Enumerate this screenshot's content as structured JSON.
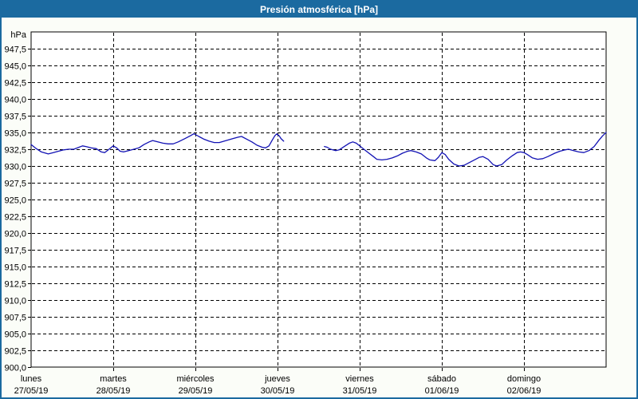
{
  "window": {
    "title": "Presión atmosférica [hPa]",
    "colors": {
      "titlebar": "#1b6aa0",
      "border": "#1b6aa0",
      "background": "#fbfdf8",
      "plot_background": "#ffffff",
      "grid": "#000000",
      "text": "#000000",
      "title_text": "#ffffff"
    }
  },
  "chart_data": {
    "type": "line",
    "title": "Presión atmosférica [hPa]",
    "grid": "dashed",
    "legend": "none",
    "y_axis": {
      "unit_label": "hPa",
      "min": 900,
      "max": 950,
      "tick_step": 2.5,
      "ticks": [
        {
          "label": "947,5",
          "value": 947.5
        },
        {
          "label": "945,0",
          "value": 945.0
        },
        {
          "label": "942,5",
          "value": 942.5
        },
        {
          "label": "940,0",
          "value": 940.0
        },
        {
          "label": "937,5",
          "value": 937.5
        },
        {
          "label": "935,0",
          "value": 935.0
        },
        {
          "label": "932,5",
          "value": 932.5
        },
        {
          "label": "930,0",
          "value": 930.0
        },
        {
          "label": "927,5",
          "value": 927.5
        },
        {
          "label": "925,0",
          "value": 925.0
        },
        {
          "label": "922,5",
          "value": 922.5
        },
        {
          "label": "920,0",
          "value": 920.0
        },
        {
          "label": "917,5",
          "value": 917.5
        },
        {
          "label": "915,0",
          "value": 915.0
        },
        {
          "label": "912,5",
          "value": 912.5
        },
        {
          "label": "910,0",
          "value": 910.0
        },
        {
          "label": "907,5",
          "value": 907.5
        },
        {
          "label": "905,0",
          "value": 905.0
        },
        {
          "label": "902,5",
          "value": 902.5
        },
        {
          "label": "900,0",
          "value": 900.0
        }
      ]
    },
    "x_axis": {
      "days": [
        {
          "name": "lunes",
          "date": "27/05/19"
        },
        {
          "name": "martes",
          "date": "28/05/19"
        },
        {
          "name": "miércoles",
          "date": "29/05/19"
        },
        {
          "name": "jueves",
          "date": "30/05/19"
        },
        {
          "name": "viernes",
          "date": "31/05/19"
        },
        {
          "name": "sábado",
          "date": "01/06/19"
        },
        {
          "name": "domingo",
          "date": "02/06/19"
        }
      ]
    },
    "series": [
      {
        "name": "Presión atmosférica",
        "color": "#1212b4",
        "x_unit": "hours_since_monday_00",
        "points": [
          [
            0,
            933.2
          ],
          [
            1.5,
            932.6
          ],
          [
            3,
            932.1
          ],
          [
            5,
            931.8
          ],
          [
            6.5,
            932.0
          ],
          [
            8,
            932.2
          ],
          [
            9.5,
            932.4
          ],
          [
            11,
            932.5
          ],
          [
            12.5,
            932.5
          ],
          [
            14,
            932.8
          ],
          [
            15,
            933.0
          ],
          [
            16,
            932.9
          ],
          [
            17.5,
            932.7
          ],
          [
            19,
            932.6
          ],
          [
            20.5,
            932.1
          ],
          [
            21.5,
            932.0
          ],
          [
            23,
            932.6
          ],
          [
            24,
            933.0
          ],
          [
            25,
            932.7
          ],
          [
            26,
            932.2
          ],
          [
            27,
            932.1
          ],
          [
            28.5,
            932.3
          ],
          [
            30,
            932.5
          ],
          [
            31.5,
            932.7
          ],
          [
            33,
            933.2
          ],
          [
            34.5,
            933.6
          ],
          [
            35.5,
            933.8
          ],
          [
            37,
            933.6
          ],
          [
            38.5,
            933.4
          ],
          [
            40,
            933.3
          ],
          [
            41.5,
            933.3
          ],
          [
            43,
            933.6
          ],
          [
            45,
            934.1
          ],
          [
            46.5,
            934.5
          ],
          [
            47.5,
            934.8
          ],
          [
            48,
            934.7
          ],
          [
            49,
            934.4
          ],
          [
            50.5,
            934.0
          ],
          [
            52,
            933.7
          ],
          [
            53.5,
            933.5
          ],
          [
            55,
            933.5
          ],
          [
            57,
            933.8
          ],
          [
            59,
            934.1
          ],
          [
            60.5,
            934.3
          ],
          [
            61.5,
            934.4
          ],
          [
            63,
            934.0
          ],
          [
            64.5,
            933.6
          ],
          [
            66,
            933.1
          ],
          [
            67.5,
            932.8
          ],
          [
            68.5,
            932.7
          ],
          [
            69.5,
            933.0
          ],
          [
            70.5,
            933.9
          ],
          [
            71.2,
            934.5
          ],
          [
            71.8,
            934.8
          ],
          [
            72,
            934.7
          ],
          [
            72.5,
            934.5
          ],
          [
            73,
            934.1
          ],
          [
            73.8,
            933.7
          ],
          null,
          [
            85.7,
            932.9
          ],
          [
            86.5,
            932.8
          ],
          [
            87.5,
            932.5
          ],
          [
            89,
            932.3
          ],
          [
            90,
            932.4
          ],
          [
            91.5,
            932.9
          ],
          [
            93,
            933.4
          ],
          [
            94,
            933.6
          ],
          [
            95,
            933.4
          ],
          [
            96,
            933.0
          ],
          [
            97,
            932.6
          ],
          [
            98.5,
            932.0
          ],
          [
            100,
            931.4
          ],
          [
            101,
            931.0
          ],
          [
            102.5,
            930.9
          ],
          [
            104,
            931.0
          ],
          [
            105.5,
            931.2
          ],
          [
            107,
            931.5
          ],
          [
            108.5,
            931.9
          ],
          [
            110,
            932.2
          ],
          [
            111,
            932.3
          ],
          [
            112.5,
            932.1
          ],
          [
            114,
            931.8
          ],
          [
            115.5,
            931.2
          ],
          [
            116.5,
            930.9
          ],
          [
            118,
            930.8
          ],
          [
            119,
            931.3
          ],
          [
            120,
            932.0
          ],
          [
            121,
            931.7
          ],
          [
            122,
            931.0
          ],
          [
            123.5,
            930.3
          ],
          [
            125,
            930.0
          ],
          [
            126.5,
            930.1
          ],
          [
            128,
            930.5
          ],
          [
            129.5,
            930.9
          ],
          [
            131,
            931.3
          ],
          [
            132,
            931.4
          ],
          [
            133.5,
            931.0
          ],
          [
            135,
            930.2
          ],
          [
            136,
            930.0
          ],
          [
            137.5,
            930.2
          ],
          [
            139,
            930.9
          ],
          [
            140.5,
            931.5
          ],
          [
            142,
            932.0
          ],
          [
            143,
            932.1
          ],
          [
            144,
            932.0
          ],
          [
            145,
            931.7
          ],
          [
            146.5,
            931.2
          ],
          [
            148,
            931.0
          ],
          [
            149.5,
            931.1
          ],
          [
            151,
            931.4
          ],
          [
            153,
            931.9
          ],
          [
            154.5,
            932.2
          ],
          [
            156,
            932.4
          ],
          [
            157,
            932.5
          ],
          [
            158.5,
            932.3
          ],
          [
            160,
            932.1
          ],
          [
            161.5,
            932.0
          ],
          [
            163,
            932.3
          ],
          [
            164.5,
            932.9
          ],
          [
            166,
            933.9
          ],
          [
            167,
            934.5
          ],
          [
            168,
            935.0
          ]
        ]
      }
    ]
  }
}
